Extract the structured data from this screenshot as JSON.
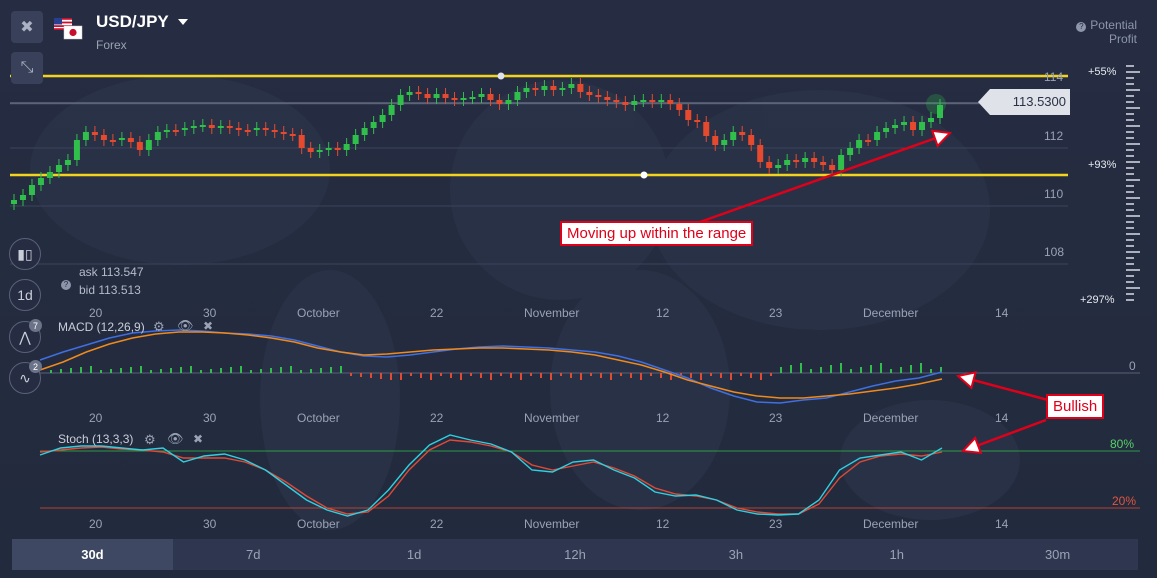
{
  "header": {
    "pair": "USD/JPY",
    "category": "Forex",
    "potential_label_1": "Potential",
    "potential_label_2": "Profit"
  },
  "price_tag": "113.5300",
  "quotes": {
    "ask": "ask 113.547",
    "bid": "bid 113.513"
  },
  "price_axis": [
    "114",
    "112",
    "110",
    "108"
  ],
  "profit_levels": [
    "+55%",
    "+93%",
    "+297%"
  ],
  "date_axis": [
    "20",
    "30",
    "October",
    "22",
    "November",
    "12",
    "23",
    "December",
    "14"
  ],
  "toolbar": {
    "interval": "1d",
    "indicators_badge": "7",
    "drawing_badge": "2"
  },
  "macd": {
    "title": "MACD (12,26,9)",
    "zero_label": "0"
  },
  "stoch": {
    "title": "Stoch (13,3,3)",
    "upper": "80%",
    "lower": "20%"
  },
  "annotations": {
    "range": "Moving up within the range",
    "bullish": "Bullish"
  },
  "timeframes": [
    {
      "label": "30d",
      "active": true
    },
    {
      "label": "7d",
      "active": false
    },
    {
      "label": "1d",
      "active": false
    },
    {
      "label": "12h",
      "active": false
    },
    {
      "label": "3h",
      "active": false
    },
    {
      "label": "1h",
      "active": false
    },
    {
      "label": "30m",
      "active": false
    }
  ],
  "colors": {
    "up": "#2fbf4a",
    "down": "#e64a2e",
    "level": "#f2d41f",
    "macd": "#3f6fe0",
    "signal": "#f08a1c",
    "stoch_k": "#2fd0e0",
    "stoch_d": "#e04a36"
  }
}
